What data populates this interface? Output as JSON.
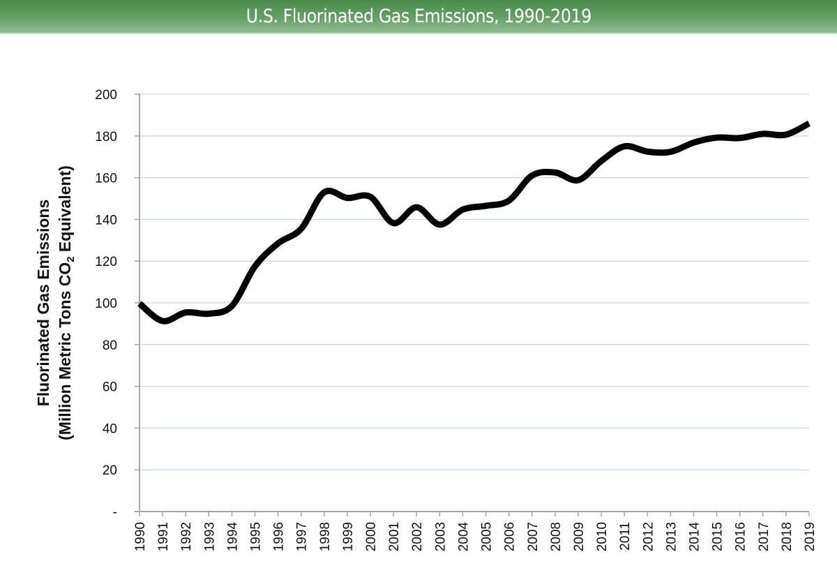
{
  "header": {
    "title": "U.S. Fluorinated Gas Emissions, 1990-2019"
  },
  "colors": {
    "header_green": "#4a8d4a",
    "line": "#000000",
    "grid": "#c5daf2",
    "axis": "#a6a6a6"
  },
  "chart_data": {
    "type": "line",
    "title": "U.S. Fluorinated Gas Emissions, 1990-2019",
    "xlabel": "",
    "ylabel_line1": "Fluorinated Gas Emissions",
    "ylabel_line2_prefix": "(Million Metric Tons CO",
    "ylabel_line2_sub": "2",
    "ylabel_line2_suffix": " Equivalent)",
    "ylim": [
      0,
      200
    ],
    "y_ticks": [
      0,
      20,
      40,
      60,
      80,
      100,
      120,
      140,
      160,
      180,
      200
    ],
    "y_tick_labels": [
      "-",
      "20",
      "40",
      "60",
      "80",
      "100",
      "120",
      "140",
      "160",
      "180",
      "200"
    ],
    "grid": true,
    "legend": "none",
    "x": [
      "1990",
      "1991",
      "1992",
      "1993",
      "1994",
      "1995",
      "1996",
      "1997",
      "1998",
      "1999",
      "2000",
      "2001",
      "2002",
      "2003",
      "2004",
      "2005",
      "2006",
      "2007",
      "2008",
      "2009",
      "2010",
      "2011",
      "2012",
      "2013",
      "2014",
      "2015",
      "2016",
      "2017",
      "2018",
      "2019"
    ],
    "series": [
      {
        "name": "Fluorinated Gas Emissions",
        "values": [
          99.7,
          91.3,
          95.4,
          94.8,
          98.5,
          117.5,
          128.5,
          135.5,
          153,
          150.3,
          150.8,
          138.2,
          145.8,
          137.5,
          144.7,
          146.5,
          149,
          161,
          162.5,
          158.8,
          168,
          175,
          172.5,
          172.4,
          176.8,
          179.2,
          179,
          181,
          180.6,
          186
        ]
      }
    ]
  }
}
